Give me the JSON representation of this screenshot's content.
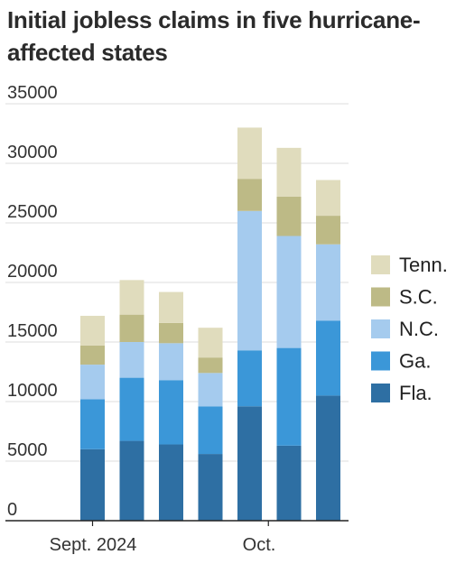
{
  "chart_data": {
    "type": "bar",
    "stacked": true,
    "title": "Initial jobless claims in five hurricane-affected states",
    "x_tick_labels": [
      "Sept. 2024",
      "Oct."
    ],
    "ylim": [
      0,
      35000
    ],
    "y_ticks": [
      "0",
      "5000",
      "10000",
      "15000",
      "20000",
      "25000",
      "30000",
      "35000"
    ],
    "grid": true,
    "legend_position": "right",
    "series": [
      {
        "name": "Fla.",
        "color": "#2e6fa3",
        "values": [
          6000,
          6700,
          6400,
          5600,
          9600,
          6300,
          10500
        ]
      },
      {
        "name": "Ga.",
        "color": "#3b97d8",
        "values": [
          4200,
          5300,
          5400,
          4000,
          4700,
          8200,
          6300
        ]
      },
      {
        "name": "N.C.",
        "color": "#a5cbee",
        "values": [
          2900,
          3000,
          3100,
          2800,
          11700,
          9400,
          6400
        ]
      },
      {
        "name": "S.C.",
        "color": "#bdba86",
        "values": [
          1600,
          2300,
          1700,
          1300,
          2700,
          3300,
          2400
        ]
      },
      {
        "name": "Tenn.",
        "color": "#e0dcbd",
        "values": [
          2500,
          2900,
          2600,
          2500,
          4300,
          4100,
          3000
        ]
      }
    ]
  }
}
